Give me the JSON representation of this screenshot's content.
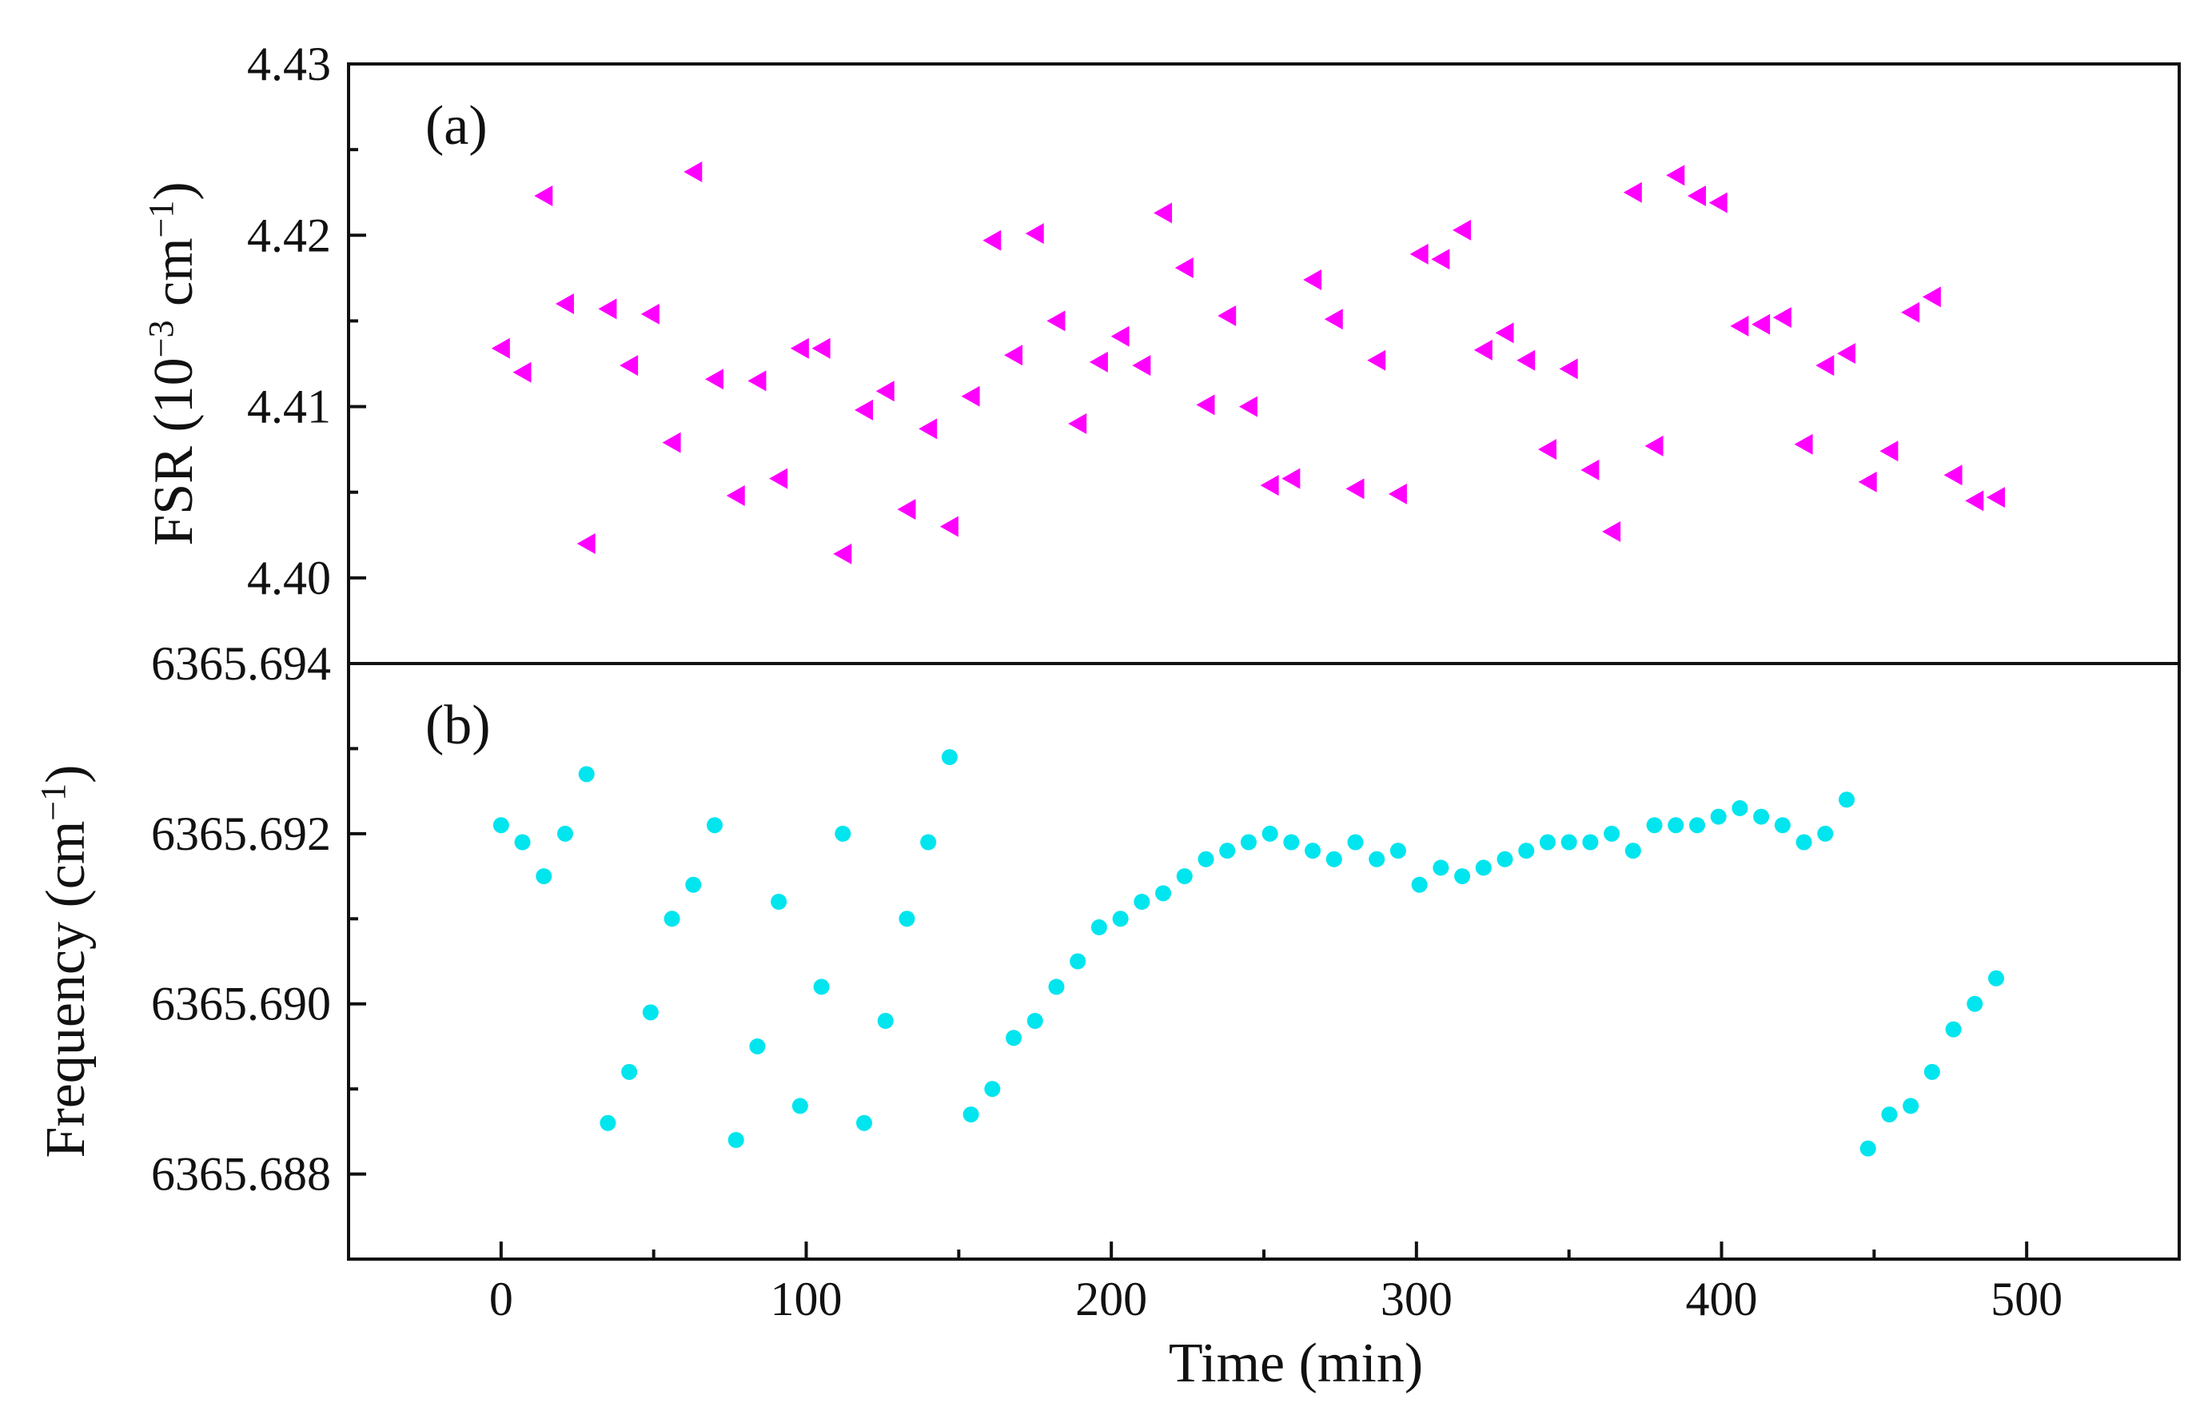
{
  "chart_data": [
    {
      "type": "scatter",
      "panel_label": "(a)",
      "ylabel_main": "FSR (10",
      "ylabel_exponent": "−3",
      "ylabel_unit": " cm",
      "ylabel_unit_exponent": "−1",
      "ylabel_close": ")",
      "ylim": [
        4.395,
        4.43
      ],
      "yticks": [
        "4.40",
        "4.41",
        "4.42",
        "4.43"
      ],
      "ytick_values": [
        4.4,
        4.41,
        4.42,
        4.43
      ],
      "marker": "left-triangle",
      "color": "#ff00ff",
      "series": [
        {
          "name": "FSR",
          "x": [
            0,
            7,
            14,
            21,
            28,
            35,
            42,
            49,
            56,
            63,
            70,
            77,
            84,
            91,
            98,
            105,
            112,
            119,
            126,
            133,
            140,
            147,
            154,
            161,
            168,
            175,
            182,
            189,
            196,
            203,
            210,
            217,
            224,
            231,
            238,
            245,
            252,
            259,
            266,
            273,
            280,
            287,
            294,
            301,
            308,
            315,
            322,
            329,
            336,
            343,
            350,
            357,
            364,
            371,
            378,
            385,
            392,
            399,
            406,
            413,
            420,
            427,
            434,
            441,
            448,
            455,
            462,
            469,
            476,
            483,
            490
          ],
          "y": [
            4.4134,
            4.412,
            4.4223,
            4.416,
            4.402,
            4.4157,
            4.4124,
            4.4154,
            4.4079,
            4.4237,
            4.4116,
            4.4048,
            4.4115,
            4.4058,
            4.4134,
            4.4134,
            4.4014,
            4.4098,
            4.4109,
            4.404,
            4.4087,
            4.403,
            4.4106,
            4.4197,
            4.413,
            4.4201,
            4.415,
            4.409,
            4.4126,
            4.4141,
            4.4124,
            4.4213,
            4.4181,
            4.4101,
            4.4153,
            4.41,
            4.4054,
            4.4058,
            4.4174,
            4.4151,
            4.4052,
            4.4127,
            4.4049,
            4.4189,
            4.4186,
            4.4203,
            4.4133,
            4.4143,
            4.4127,
            4.4075,
            4.4122,
            4.4063,
            4.4027,
            4.4225,
            4.4077,
            4.4235,
            4.4223,
            4.4219,
            4.4147,
            4.4148,
            4.4152,
            4.4078,
            4.4124,
            4.4131,
            4.4056,
            4.4074,
            4.4155,
            4.4164,
            4.406,
            4.4045,
            4.4047
          ]
        }
      ]
    },
    {
      "type": "scatter",
      "panel_label": "(b)",
      "ylabel_main": "Frequency (cm",
      "ylabel_exponent": "−1",
      "ylabel_close": ")",
      "ylim": [
        6365.687,
        6365.694
      ],
      "yticks": [
        "6365.688",
        "6365.690",
        "6365.692",
        "6365.694"
      ],
      "ytick_values": [
        6365.688,
        6365.69,
        6365.692,
        6365.694
      ],
      "marker": "circle",
      "color": "#00e5ee",
      "series": [
        {
          "name": "Frequency",
          "x": [
            0,
            7,
            14,
            21,
            28,
            35,
            42,
            49,
            56,
            63,
            70,
            77,
            84,
            91,
            98,
            105,
            112,
            119,
            126,
            133,
            140,
            147,
            154,
            161,
            168,
            175,
            182,
            189,
            196,
            203,
            210,
            217,
            224,
            231,
            238,
            245,
            252,
            259,
            266,
            273,
            280,
            287,
            294,
            301,
            308,
            315,
            322,
            329,
            336,
            343,
            350,
            357,
            364,
            371,
            378,
            385,
            392,
            399,
            406,
            413,
            420,
            427,
            434,
            441,
            448,
            455,
            462,
            469,
            476,
            483,
            490
          ],
          "y": [
            6365.6921,
            6365.6919,
            6365.6915,
            6365.692,
            6365.6927,
            6365.6886,
            6365.6892,
            6365.6899,
            6365.691,
            6365.6914,
            6365.6921,
            6365.6884,
            6365.6895,
            6365.6912,
            6365.6888,
            6365.6902,
            6365.692,
            6365.6886,
            6365.6898,
            6365.691,
            6365.6919,
            6365.6929,
            6365.6887,
            6365.689,
            6365.6896,
            6365.6898,
            6365.6902,
            6365.6905,
            6365.6909,
            6365.691,
            6365.6912,
            6365.6913,
            6365.6915,
            6365.6917,
            6365.6918,
            6365.6919,
            6365.692,
            6365.6919,
            6365.6918,
            6365.6917,
            6365.6919,
            6365.6917,
            6365.6918,
            6365.6914,
            6365.6916,
            6365.6915,
            6365.6916,
            6365.6917,
            6365.6918,
            6365.6919,
            6365.6919,
            6365.6919,
            6365.692,
            6365.6918,
            6365.6921,
            6365.6921,
            6365.6921,
            6365.6922,
            6365.6923,
            6365.6922,
            6365.6921,
            6365.6919,
            6365.692,
            6365.6924,
            6365.6883,
            6365.6887,
            6365.6888,
            6365.6892,
            6365.6897,
            6365.69,
            6365.6903
          ]
        }
      ]
    }
  ],
  "x_axis": {
    "label": "Time (min)",
    "xlim": [
      -50,
      550
    ],
    "ticks": [
      "0",
      "100",
      "200",
      "300",
      "400",
      "500"
    ],
    "tick_values": [
      0,
      100,
      200,
      300,
      400,
      500
    ]
  }
}
